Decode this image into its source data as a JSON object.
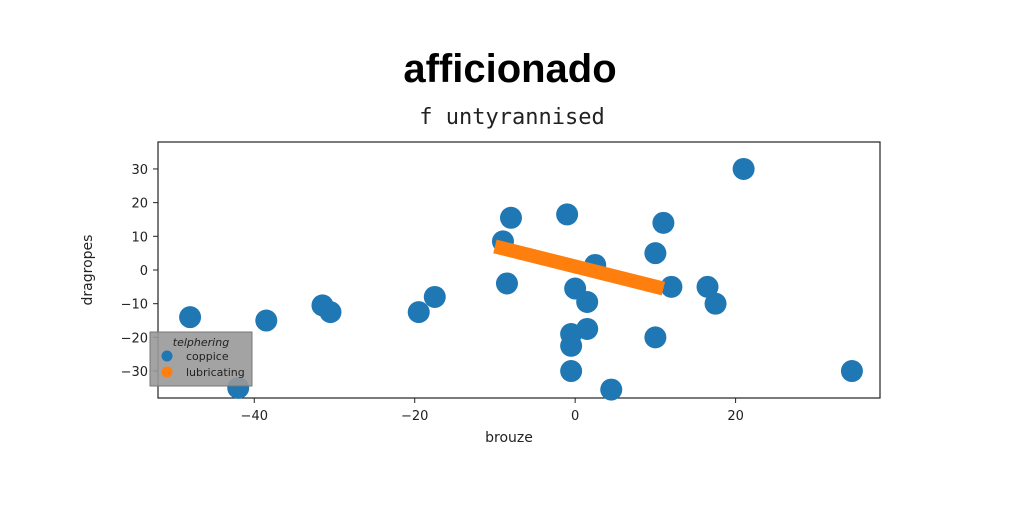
{
  "chart_data": {
    "type": "scatter",
    "title": "afficionado",
    "subtitle": "f untyrannised",
    "xlabel": "brouze",
    "ylabel": "dragropes",
    "xlim": [
      -52,
      38
    ],
    "ylim": [
      -38,
      38
    ],
    "x_ticks": [
      -40,
      -20,
      0,
      20
    ],
    "y_ticks": [
      30,
      20,
      10,
      0,
      -10,
      -20,
      -30
    ],
    "grid": false,
    "legend": {
      "title": "telphering",
      "position": "lower-left",
      "entries": [
        "coppice",
        "lubricating"
      ]
    },
    "colors": {
      "coppice": "#1f77b4",
      "lubricating": "#ff7f0e"
    },
    "series": [
      {
        "name": "coppice",
        "kind": "points",
        "points": [
          [
            -48.0,
            -14.0
          ],
          [
            -42.0,
            -35.0
          ],
          [
            -38.5,
            -15.0
          ],
          [
            -31.5,
            -10.5
          ],
          [
            -30.5,
            -12.5
          ],
          [
            -19.5,
            -12.5
          ],
          [
            -17.5,
            -8.0
          ],
          [
            -9.0,
            8.5
          ],
          [
            -8.0,
            15.5
          ],
          [
            -8.5,
            -4.0
          ],
          [
            -1.0,
            16.5
          ],
          [
            0.0,
            -5.5
          ],
          [
            2.5,
            1.5
          ],
          [
            1.5,
            -9.5
          ],
          [
            1.5,
            -17.5
          ],
          [
            -0.5,
            -19.0
          ],
          [
            -0.5,
            -22.5
          ],
          [
            -0.5,
            -30.0
          ],
          [
            4.5,
            -35.5
          ],
          [
            10.0,
            5.0
          ],
          [
            11.0,
            14.0
          ],
          [
            12.0,
            -5.0
          ],
          [
            16.5,
            -5.0
          ],
          [
            17.5,
            -10.0
          ],
          [
            10.0,
            -20.0
          ],
          [
            21.0,
            30.0
          ],
          [
            34.5,
            -30.0
          ]
        ]
      },
      {
        "name": "lubricating",
        "kind": "line",
        "points": [
          [
            -10.0,
            7.0
          ],
          [
            11.0,
            -5.5
          ]
        ]
      }
    ]
  }
}
